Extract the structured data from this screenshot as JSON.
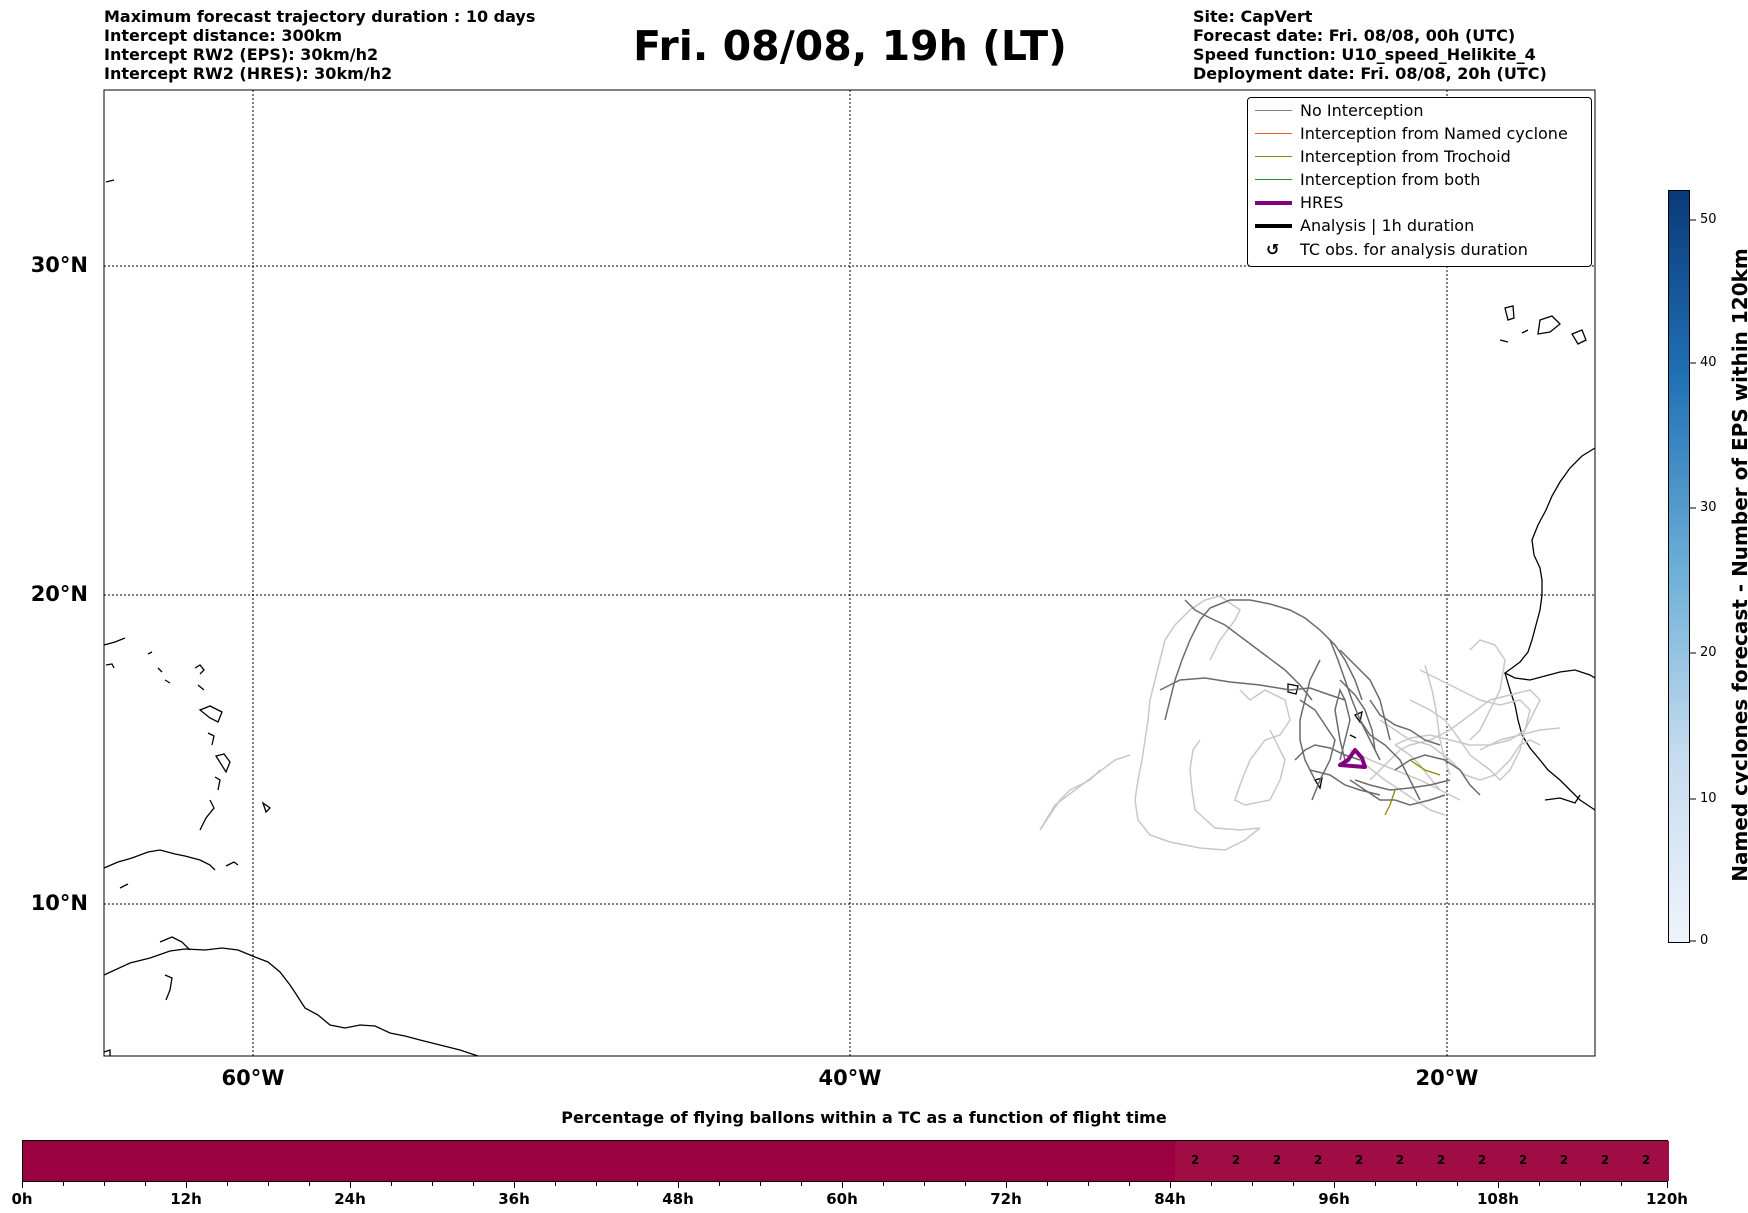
{
  "header": {
    "left": [
      "Maximum forecast trajectory duration : 10 days",
      "Intercept distance: 300km",
      "Intercept RW2 (EPS):  30km/h2",
      "Intercept RW2 (HRES): 30km/h2"
    ],
    "title": "Fri. 08/08, 19h (LT)",
    "right": [
      "Site: CapVert",
      "Forecast date: Fri. 08/08, 00h (UTC)",
      "Speed function: U10_speed_Helikite_4",
      "Deployment date: Fri. 08/08, 20h (UTC)"
    ]
  },
  "map": {
    "lat_labels": [
      "30°N",
      "20°N",
      "10°N"
    ],
    "lon_labels": [
      "60°W",
      "40°W",
      "20°W"
    ]
  },
  "legend": {
    "items": [
      {
        "label": "No Interception",
        "color": "#808080"
      },
      {
        "label": "Interception from Named cyclone",
        "color": "#e8602c"
      },
      {
        "label": "Interception from Trochoid",
        "color": "#8b8b00"
      },
      {
        "label": "Interception from both",
        "color": "#2e8b2e"
      },
      {
        "label": "HRES",
        "color": "#800080"
      },
      {
        "label": "Analysis | 1h duration",
        "color": "#000000"
      },
      {
        "label": "TC obs. for analysis duration",
        "color": "#000000",
        "icon": "cyclone-symbol-icon"
      }
    ]
  },
  "colorbar": {
    "title": "Named cyclones forecast - Number of EPS within 120km",
    "ticks": [
      "0",
      "10",
      "20",
      "30",
      "40",
      "50"
    ],
    "colors": {
      "low": "#eef4fb",
      "high": "#0a3a78"
    }
  },
  "progress": {
    "title": "Percentage of flying ballons within a TC as a function of flight time",
    "tick_labels": [
      "0h",
      "12h",
      "24h",
      "36h",
      "48h",
      "60h",
      "72h",
      "84h",
      "96h",
      "108h",
      "120h"
    ],
    "values": [
      "2",
      "2",
      "2",
      "2",
      "2",
      "2",
      "2",
      "2",
      "2",
      "2",
      "2",
      "2"
    ],
    "bar_color": "#9b0040"
  }
}
